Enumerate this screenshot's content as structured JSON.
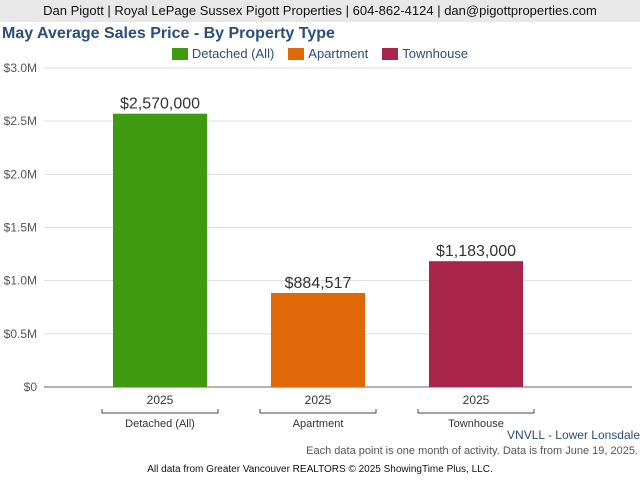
{
  "header": {
    "contact": "Dan Pigott | Royal LePage Sussex Pigott Properties | 604-862-4124 | dan@pigottproperties.com"
  },
  "chart_data": {
    "type": "bar",
    "title": "May Average Sales Price - By Property Type",
    "categories": [
      "Detached (All)",
      "Apartment",
      "Townhouse"
    ],
    "x_tick_labels": [
      "2025",
      "2025",
      "2025"
    ],
    "values": [
      2570000,
      884517,
      1183000
    ],
    "data_labels": [
      "$2,570,000",
      "$884,517",
      "$1,183,000"
    ],
    "colors": [
      "#3f9a0f",
      "#e06808",
      "#a8244a"
    ],
    "ylim": [
      0,
      3000000
    ],
    "y_ticks": [
      0,
      500000,
      1000000,
      1500000,
      2000000,
      2500000,
      3000000
    ],
    "y_tick_labels": [
      "$0",
      "$0.5M",
      "$1.0M",
      "$1.5M",
      "$2.0M",
      "$2.5M",
      "$3.0M"
    ],
    "legend": {
      "placement": "top-center",
      "entries": [
        "Detached (All)",
        "Apartment",
        "Townhouse"
      ]
    },
    "grid": true
  },
  "footer": {
    "region": "VNVLL - Lower Lonsdale",
    "note": "Each data point is one month of activity. Data is from June 19, 2025.",
    "source": "All data from Greater Vancouver REALTORS © 2025 ShowingTime Plus, LLC."
  }
}
